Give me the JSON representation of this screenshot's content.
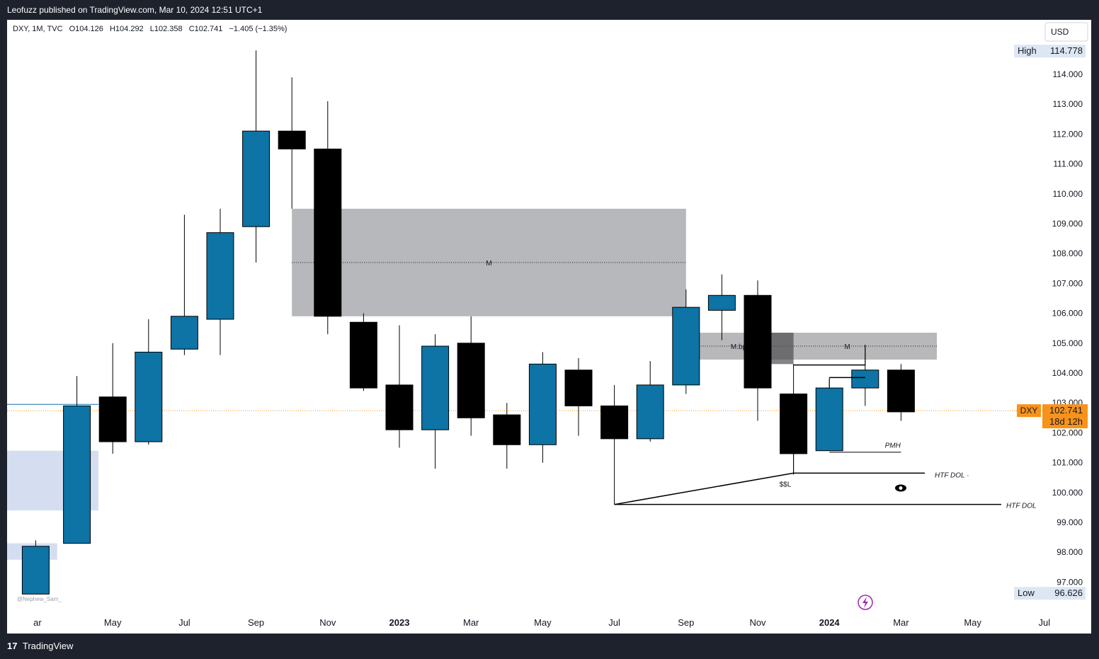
{
  "header": {
    "publish_line": "Leofuzz published on TradingView.com, Mar 10, 2024 12:51 UTC+1"
  },
  "footer": {
    "brand": "TradingView"
  },
  "colors": {
    "bull": "#0e73a5",
    "bear": "#000000",
    "last_price": "#f7931a",
    "zone_gray": "#b7b8bb",
    "zone_blue": "#d5ddf0"
  },
  "chart_data": {
    "type": "candlestick",
    "legend": {
      "symbol": "DXY, 1M, TVC",
      "open": "O104.126",
      "high": "H104.292",
      "low": "L102.358",
      "close": "C102.741",
      "change": "−1.405 (−1.35%)"
    },
    "currency": "USD",
    "y_ticks": [
      "97.000",
      "98.000",
      "99.000",
      "100.000",
      "101.000",
      "102.000",
      "103.000",
      "104.000",
      "105.000",
      "106.000",
      "107.000",
      "108.000",
      "109.000",
      "110.000",
      "111.000",
      "112.000",
      "113.000",
      "114.000"
    ],
    "ylim": [
      96.2,
      115.6
    ],
    "x_ticks": [
      {
        "label": "ar",
        "idx": -0.1
      },
      {
        "label": "May",
        "idx": 2
      },
      {
        "label": "Jul",
        "idx": 4
      },
      {
        "label": "Sep",
        "idx": 6
      },
      {
        "label": "Nov",
        "idx": 8
      },
      {
        "label": "2023",
        "idx": 10,
        "bold": true
      },
      {
        "label": "Mar",
        "idx": 12
      },
      {
        "label": "May",
        "idx": 14
      },
      {
        "label": "Jul",
        "idx": 16
      },
      {
        "label": "Sep",
        "idx": 18
      },
      {
        "label": "Nov",
        "idx": 20
      },
      {
        "label": "2024",
        "idx": 22,
        "bold": true
      },
      {
        "label": "Mar",
        "idx": 24
      },
      {
        "label": "May",
        "idx": 26
      },
      {
        "label": "Jul",
        "idx": 28
      }
    ],
    "candles": [
      {
        "m": "2022-02",
        "idx": -0.15,
        "o": 96.6,
        "h": 98.4,
        "l": 96.6,
        "c": 98.2
      },
      {
        "m": "2022-04",
        "idx": 1,
        "o": 98.3,
        "h": 103.9,
        "l": 98.3,
        "c": 102.9
      },
      {
        "m": "2022-05",
        "idx": 2,
        "o": 103.2,
        "h": 105.0,
        "l": 101.3,
        "c": 101.7
      },
      {
        "m": "2022-06",
        "idx": 3,
        "o": 101.7,
        "h": 105.8,
        "l": 101.6,
        "c": 104.7
      },
      {
        "m": "2022-07",
        "idx": 4,
        "o": 104.8,
        "h": 109.3,
        "l": 104.6,
        "c": 105.9
      },
      {
        "m": "2022-08",
        "idx": 5,
        "o": 105.8,
        "h": 109.5,
        "l": 104.6,
        "c": 108.7
      },
      {
        "m": "2022-09",
        "idx": 6,
        "o": 108.9,
        "h": 114.8,
        "l": 107.7,
        "c": 112.1
      },
      {
        "m": "2022-10",
        "idx": 7,
        "o": 112.1,
        "h": 113.9,
        "l": 109.5,
        "c": 111.5
      },
      {
        "m": "2022-11",
        "idx": 8,
        "o": 111.5,
        "h": 113.1,
        "l": 105.3,
        "c": 105.9
      },
      {
        "m": "2022-12",
        "idx": 9,
        "o": 105.7,
        "h": 106.0,
        "l": 103.4,
        "c": 103.5
      },
      {
        "m": "2023-01",
        "idx": 10,
        "o": 103.6,
        "h": 105.6,
        "l": 101.5,
        "c": 102.1
      },
      {
        "m": "2023-02",
        "idx": 11,
        "o": 102.1,
        "h": 105.3,
        "l": 100.8,
        "c": 104.9
      },
      {
        "m": "2023-03",
        "idx": 12,
        "o": 105.0,
        "h": 105.9,
        "l": 101.9,
        "c": 102.5
      },
      {
        "m": "2023-04",
        "idx": 13,
        "o": 102.6,
        "h": 103.0,
        "l": 100.8,
        "c": 101.6
      },
      {
        "m": "2023-05",
        "idx": 14,
        "o": 101.6,
        "h": 104.7,
        "l": 101.0,
        "c": 104.3
      },
      {
        "m": "2023-06",
        "idx": 15,
        "o": 104.1,
        "h": 104.5,
        "l": 101.9,
        "c": 102.9
      },
      {
        "m": "2023-07",
        "idx": 16,
        "o": 102.9,
        "h": 103.6,
        "l": 99.6,
        "c": 101.8
      },
      {
        "m": "2023-08",
        "idx": 17,
        "o": 101.8,
        "h": 104.4,
        "l": 101.7,
        "c": 103.6
      },
      {
        "m": "2023-09",
        "idx": 18,
        "o": 103.6,
        "h": 106.8,
        "l": 103.3,
        "c": 106.2
      },
      {
        "m": "2023-10",
        "idx": 19,
        "o": 106.1,
        "h": 107.3,
        "l": 105.1,
        "c": 106.6
      },
      {
        "m": "2023-11",
        "idx": 20,
        "o": 106.6,
        "h": 107.1,
        "l": 102.4,
        "c": 103.5
      },
      {
        "m": "2023-12",
        "idx": 21,
        "o": 103.3,
        "h": 104.3,
        "l": 100.6,
        "c": 101.3
      },
      {
        "m": "2024-01",
        "idx": 22,
        "o": 101.4,
        "h": 103.8,
        "l": 101.4,
        "c": 103.5
      },
      {
        "m": "2024-02",
        "idx": 23,
        "o": 103.5,
        "h": 104.9,
        "l": 102.9,
        "c": 104.1
      },
      {
        "m": "2024-03",
        "idx": 24,
        "o": 104.1,
        "h": 104.3,
        "l": 102.4,
        "c": 102.7
      }
    ],
    "last_price": {
      "symbol": "DXY",
      "value": 102.741,
      "countdown": "18d 12h"
    },
    "high_label": {
      "tag": "High",
      "value": "114.778",
      "y": 114.778
    },
    "low_label": {
      "tag": "Low",
      "value": "96.626",
      "y": 96.626
    },
    "zones": [
      {
        "x0": 7,
        "x1": 18,
        "y0": 105.9,
        "y1": 109.5,
        "color": "gray",
        "mid_label": "M"
      },
      {
        "x0": 18.0,
        "x1": 21.0,
        "y0": 104.45,
        "y1": 105.35,
        "color": "light",
        "mid_label": "M.bpr"
      },
      {
        "x0": 20.0,
        "x1": 25.0,
        "y0": 104.45,
        "y1": 105.35,
        "color": "light",
        "mid_label": "M"
      },
      {
        "x0": 20.0,
        "x1": 21.0,
        "y0": 104.3,
        "y1": 105.35,
        "color": "dark"
      },
      {
        "x0": -1.5,
        "x1": 1.6,
        "y0": 99.4,
        "y1": 101.4,
        "color": "blue"
      },
      {
        "x0": -1.5,
        "x1": 0.45,
        "y0": 97.75,
        "y1": 98.3,
        "color": "blue"
      }
    ],
    "annotations": {
      "ssl": "$$L",
      "pmh": "PMH",
      "htf_dol_upper": "HTF DOL ·",
      "htf_dol_lower": "HTF DOL",
      "watermark": "@Nephew_Sam_"
    }
  }
}
